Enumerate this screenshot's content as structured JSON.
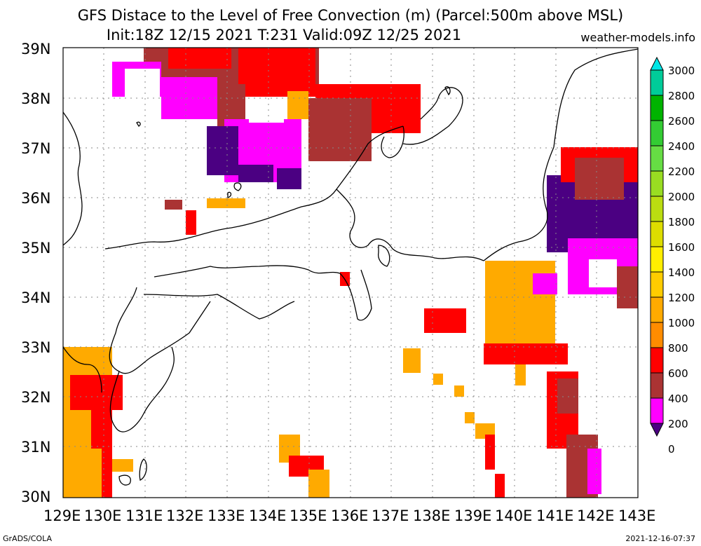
{
  "title_line1": "GFS Distace to the Level of Free Convection (m) (Parcel:500m above MSL)",
  "title_line2": "Init:18Z 12/15 2021 T:231 Valid:09Z 12/25 2021",
  "site": "weather-models.info",
  "footer_left": "GrADS/COLA",
  "footer_right": "2021-12-16-07:37",
  "axes": {
    "lat_labels": [
      "39N",
      "38N",
      "37N",
      "36N",
      "35N",
      "34N",
      "33N",
      "32N",
      "31N",
      "30N"
    ],
    "lon_labels": [
      "129E",
      "130E",
      "131E",
      "132E",
      "133E",
      "134E",
      "135E",
      "136E",
      "137E",
      "138E",
      "139E",
      "140E",
      "141E",
      "142E",
      "143E"
    ]
  },
  "colorbar": {
    "labels": [
      "3000",
      "2800",
      "2600",
      "2400",
      "2200",
      "2000",
      "1800",
      "1600",
      "1400",
      "1200",
      "1000",
      "800",
      "600",
      "400",
      "200",
      "0"
    ],
    "colors": [
      "#00e6e6",
      "#00cc99",
      "#00b300",
      "#33cc33",
      "#66dd44",
      "#99dd22",
      "#bbdd11",
      "#dddd00",
      "#ffee00",
      "#ffcc00",
      "#ffaa00",
      "#ff8c00",
      "#ff0000",
      "#aa3333",
      "#ff00ff",
      "#4b0082"
    ]
  }
}
